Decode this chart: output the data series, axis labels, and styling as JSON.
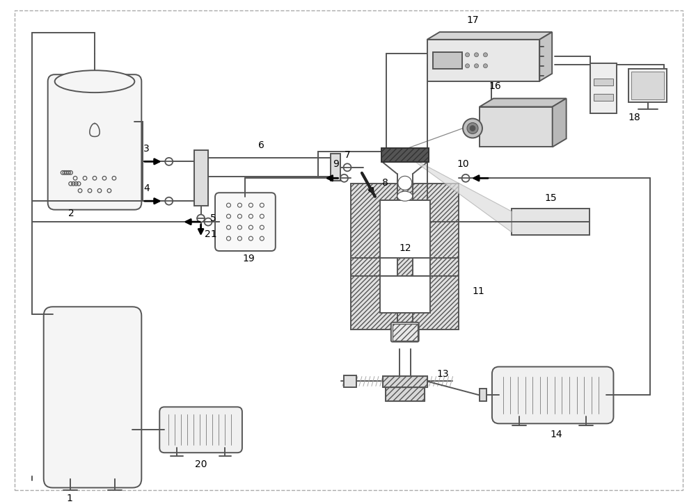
{
  "lc": "#555555",
  "lw": 1.4,
  "lw2": 2.0,
  "fc_light": "#f0f0f0",
  "fc_hatch": "#e0e0e0",
  "fc_dark": "#888888"
}
